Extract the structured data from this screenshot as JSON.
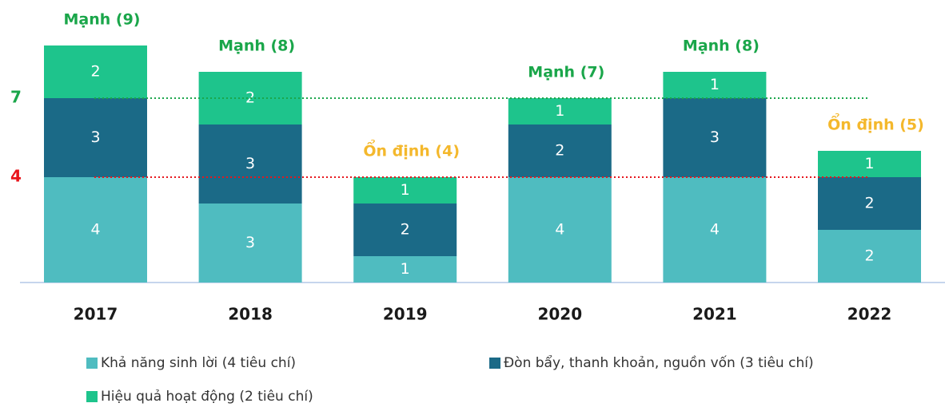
{
  "chart_data": {
    "type": "stacked_bar",
    "categories": [
      "2017",
      "2018",
      "2019",
      "2020",
      "2021",
      "2022"
    ],
    "series": [
      {
        "name": "Khả năng sinh lời (4 tiêu chí)",
        "color": "#4fbcc0",
        "values": [
          4,
          3,
          1,
          4,
          4,
          2
        ]
      },
      {
        "name": "Đòn bẩy, thanh khoản, nguồn vốn (3 tiêu chí)",
        "color": "#1b6a87",
        "values": [
          3,
          3,
          2,
          2,
          3,
          2
        ]
      },
      {
        "name": "Hiệu quả hoạt động (2 tiêu chí)",
        "color": "#1ec48c",
        "values": [
          2,
          2,
          1,
          1,
          1,
          1
        ]
      }
    ],
    "total_labels": [
      "Mạnh (9)",
      "Mạnh (8)",
      "Ổn định (4)",
      "Mạnh (7)",
      "Mạnh (8)",
      "Ổn định (5)"
    ],
    "total_label_colors": [
      "#1aa64a",
      "#1aa64a",
      "#f4b82c",
      "#1aa64a",
      "#1aa64a",
      "#f4b82c"
    ],
    "reference_lines": [
      {
        "value": 7,
        "color": "#1aa64a"
      },
      {
        "value": 4,
        "color": "#e8151b"
      }
    ],
    "ylim": [
      0,
      9
    ]
  }
}
